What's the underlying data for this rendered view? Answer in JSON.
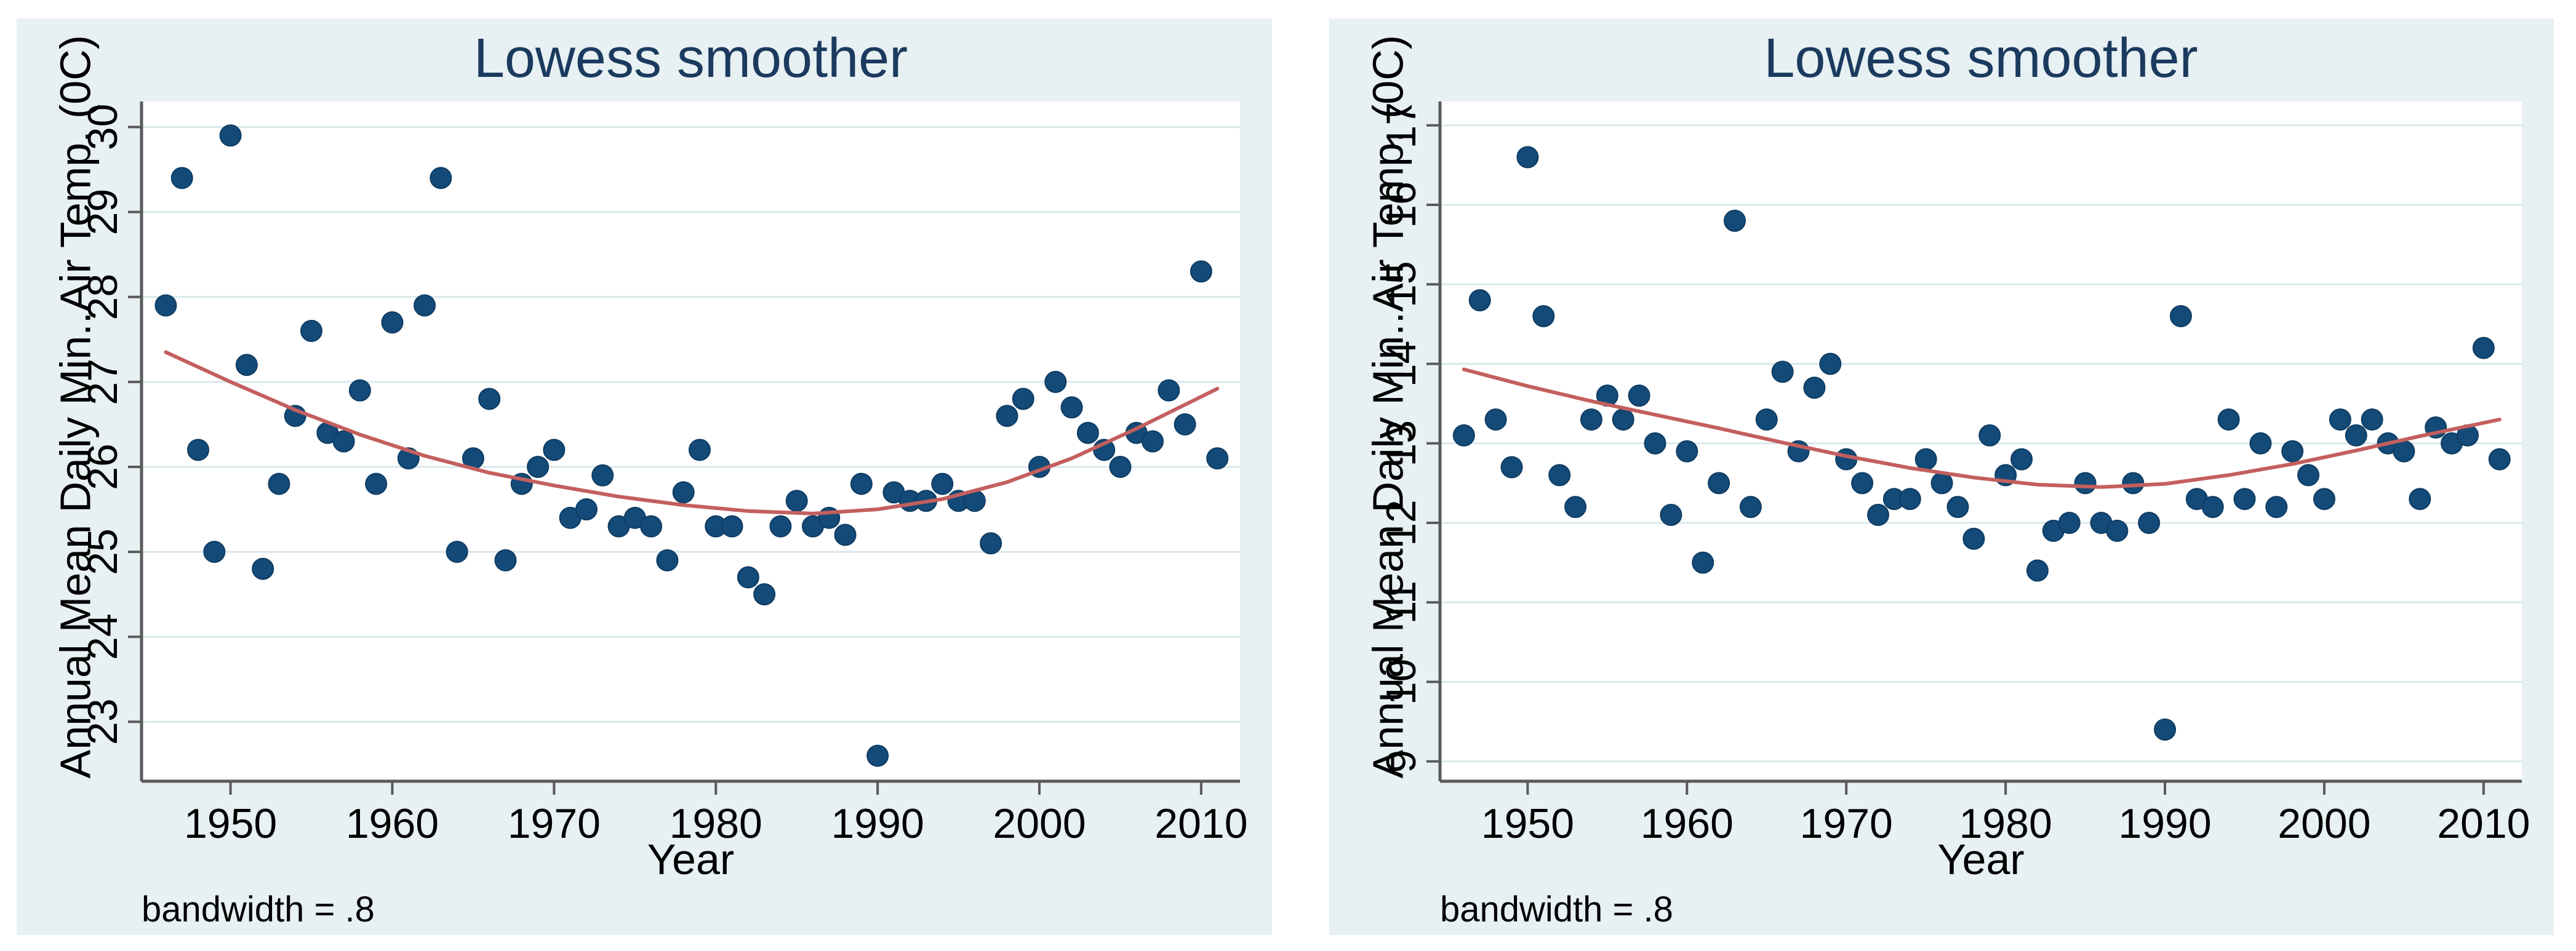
{
  "theme": {
    "panel_background": "#e7f0f2",
    "plot_background": "#ffffff",
    "grid_color": "#d9e8ec",
    "axis_color": "#5a5a5a",
    "marker_color": "#134a77",
    "marker_edge_color": "#0e3c63",
    "lowess_line_color": "#c35f5e",
    "title_color": "#1b3a5f",
    "text_color": "#000000"
  },
  "chart_data": [
    {
      "type": "scatter",
      "title": "Lowess smoother",
      "xlabel": "Year",
      "ylabel": "Annual Mean Daily Min..Air Temp. (0C)",
      "note": "bandwidth = .8",
      "legend": "none",
      "grid": "horizontal",
      "x_range": [
        1944.5,
        2012.4
      ],
      "y_range": [
        22.3,
        30.3
      ],
      "x_ticks": [
        1950,
        1960,
        1970,
        1980,
        1990,
        2000,
        2010
      ],
      "y_ticks": [
        23,
        24,
        25,
        26,
        27,
        28,
        29,
        30
      ],
      "series": [
        {
          "name": "Annual Mean Daily Min..Air Temp. (0C)",
          "type": "scatter",
          "x": [
            1946,
            1947,
            1948,
            1949,
            1950,
            1951,
            1952,
            1953,
            1954,
            1955,
            1956,
            1957,
            1958,
            1959,
            1960,
            1961,
            1962,
            1963,
            1964,
            1965,
            1966,
            1967,
            1968,
            1969,
            1970,
            1971,
            1972,
            1973,
            1974,
            1975,
            1976,
            1977,
            1978,
            1979,
            1980,
            1981,
            1982,
            1983,
            1984,
            1985,
            1986,
            1987,
            1988,
            1989,
            1990,
            1991,
            1992,
            1993,
            1994,
            1995,
            1996,
            1997,
            1998,
            1999,
            2000,
            2001,
            2002,
            2003,
            2004,
            2005,
            2006,
            2007,
            2008,
            2009,
            2010,
            2011
          ],
          "y": [
            27.9,
            29.4,
            26.2,
            25.0,
            29.9,
            27.2,
            24.8,
            25.8,
            26.6,
            27.6,
            26.4,
            26.3,
            26.9,
            25.8,
            27.7,
            26.1,
            27.9,
            29.4,
            25.0,
            26.1,
            26.8,
            24.9,
            25.8,
            26.0,
            26.2,
            25.4,
            25.5,
            25.9,
            25.3,
            25.4,
            25.3,
            24.9,
            25.7,
            26.2,
            25.3,
            25.3,
            24.7,
            24.5,
            25.3,
            25.6,
            25.3,
            25.4,
            25.2,
            25.8,
            22.6,
            25.7,
            25.6,
            25.6,
            25.8,
            25.6,
            25.6,
            25.1,
            26.6,
            26.8,
            26.0,
            27.0,
            26.7,
            26.4,
            26.2,
            26.0,
            26.4,
            26.3,
            26.9,
            26.5,
            28.3,
            26.1
          ]
        },
        {
          "name": "lowess smooth",
          "type": "line",
          "x": [
            1946,
            1950,
            1954,
            1958,
            1962,
            1966,
            1970,
            1974,
            1978,
            1982,
            1986,
            1990,
            1994,
            1998,
            2002,
            2006,
            2011
          ],
          "y": [
            27.35,
            27.0,
            26.67,
            26.38,
            26.13,
            25.93,
            25.78,
            25.65,
            25.55,
            25.48,
            25.45,
            25.5,
            25.62,
            25.82,
            26.1,
            26.45,
            26.92
          ]
        }
      ]
    },
    {
      "type": "scatter",
      "title": "Lowess smoother",
      "xlabel": "Year",
      "ylabel": "Annual Mean Daily Min..Air Temp. (0C)",
      "note": "bandwidth = .8",
      "legend": "none",
      "grid": "horizontal",
      "x_range": [
        1944.5,
        2012.4
      ],
      "y_range": [
        8.75,
        17.3
      ],
      "x_ticks": [
        1950,
        1960,
        1970,
        1980,
        1990,
        2000,
        2010
      ],
      "y_ticks": [
        9,
        10,
        11,
        12,
        13,
        14,
        15,
        16,
        17
      ],
      "series": [
        {
          "name": "Annual Mean Daily Min..Air Temp. (0C)",
          "type": "scatter",
          "x": [
            1946,
            1947,
            1948,
            1949,
            1950,
            1951,
            1952,
            1953,
            1954,
            1955,
            1956,
            1957,
            1958,
            1959,
            1960,
            1961,
            1962,
            1963,
            1964,
            1965,
            1966,
            1967,
            1968,
            1969,
            1970,
            1971,
            1972,
            1973,
            1974,
            1975,
            1976,
            1977,
            1978,
            1979,
            1980,
            1981,
            1982,
            1983,
            1984,
            1985,
            1986,
            1987,
            1988,
            1989,
            1990,
            1991,
            1992,
            1993,
            1994,
            1995,
            1996,
            1997,
            1998,
            1999,
            2000,
            2001,
            2002,
            2003,
            2004,
            2005,
            2006,
            2007,
            2008,
            2009,
            2010,
            2011
          ],
          "y": [
            13.1,
            14.8,
            13.3,
            12.7,
            16.6,
            14.6,
            12.6,
            12.2,
            13.3,
            13.6,
            13.3,
            13.6,
            13.0,
            12.1,
            12.9,
            11.5,
            12.5,
            15.8,
            12.2,
            13.3,
            13.9,
            12.9,
            13.7,
            14.0,
            12.8,
            12.5,
            12.1,
            12.3,
            12.3,
            12.8,
            12.5,
            12.2,
            11.8,
            13.1,
            12.6,
            12.8,
            11.4,
            11.9,
            12.0,
            12.5,
            12.0,
            11.9,
            12.5,
            12.0,
            9.4,
            14.6,
            12.3,
            12.2,
            13.3,
            12.3,
            13.0,
            12.2,
            12.9,
            12.6,
            12.3,
            13.3,
            13.1,
            13.3,
            13.0,
            12.9,
            12.3,
            13.2,
            13.0,
            13.1,
            14.2,
            12.8
          ]
        },
        {
          "name": "lowess smooth",
          "type": "line",
          "x": [
            1946,
            1950,
            1954,
            1958,
            1962,
            1966,
            1970,
            1974,
            1978,
            1982,
            1986,
            1990,
            1994,
            1998,
            2002,
            2006,
            2011
          ],
          "y": [
            13.93,
            13.72,
            13.53,
            13.36,
            13.19,
            13.01,
            12.84,
            12.69,
            12.57,
            12.48,
            12.45,
            12.49,
            12.6,
            12.74,
            12.91,
            13.09,
            13.3
          ]
        }
      ]
    }
  ]
}
